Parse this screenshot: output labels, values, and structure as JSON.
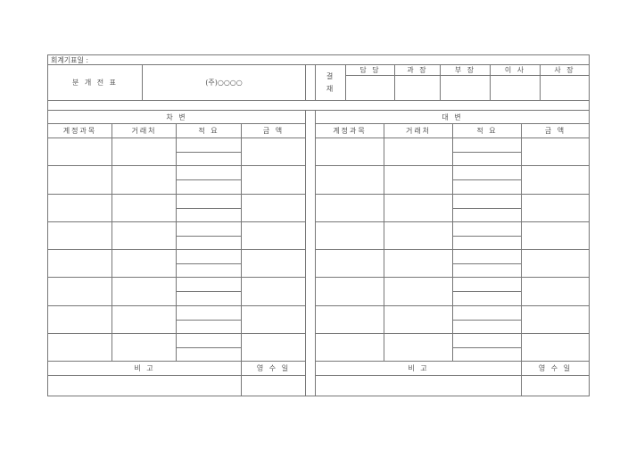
{
  "header": {
    "date_label": "회계기표일 :",
    "doc_title": "분 개 전 표",
    "company": "(주)○○○○"
  },
  "approval": {
    "label": "결\n재",
    "label_top": "결",
    "label_bottom": "재",
    "roles": [
      "담 당",
      "과 장",
      "부 장",
      "이 사",
      "사 장"
    ]
  },
  "debit": {
    "title": "차 변",
    "columns": [
      "계정과목",
      "거래처",
      "적 요",
      "금 액"
    ],
    "remarks_label": "비 고",
    "receipt_label": "영 수 일"
  },
  "credit": {
    "title": "대 변",
    "columns": [
      "계정과목",
      "거래처",
      "적 요",
      "금 액"
    ],
    "remarks_label": "비 고",
    "receipt_label": "영 수 일"
  }
}
